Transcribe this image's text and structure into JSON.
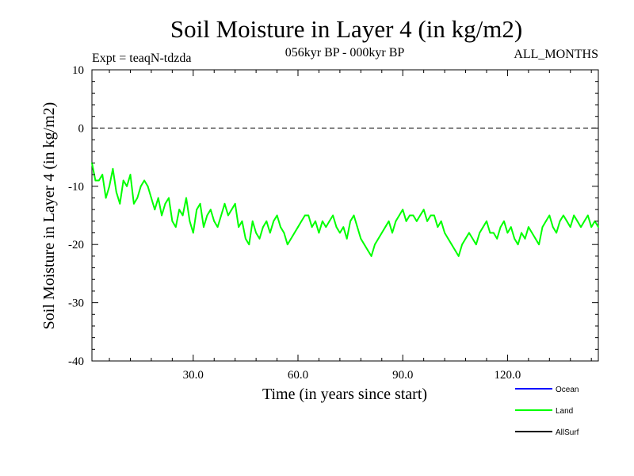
{
  "chart_data": {
    "type": "line",
    "title": "Soil Moisture in Layer 4 (in kg/m2)",
    "subtitle_left": "Expt = teaqN-tdzda",
    "subtitle_center": "056kyr BP - 000kyr BP",
    "subtitle_right": "ALL_MONTHS",
    "xlabel": "Time (in years since start)",
    "ylabel": "Soil Moisture in Layer 4 (in kg/m2)",
    "xlim": [
      1,
      146
    ],
    "ylim": [
      -40,
      10
    ],
    "x_ticks": [
      30,
      60,
      90,
      120
    ],
    "x_tick_labels": [
      "30.0",
      "60.0",
      "90.0",
      "120.0"
    ],
    "y_ticks": [
      10,
      0,
      -10,
      -20,
      -30,
      -40
    ],
    "y_tick_labels": [
      "10",
      "0",
      "-10",
      "-20",
      "-30",
      "-40"
    ],
    "reference_line": 0,
    "grid": false,
    "legend_position": "bottom-right",
    "series": [
      {
        "name": "Ocean",
        "color": "#0000ff",
        "values": []
      },
      {
        "name": "Land",
        "color": "#00ff00",
        "x_start": 1,
        "x_step": 1,
        "values": [
          -6,
          -9,
          -9,
          -8,
          -12,
          -10,
          -7,
          -11,
          -13,
          -9,
          -10,
          -8,
          -13,
          -12,
          -10,
          -9,
          -10,
          -12,
          -14,
          -12,
          -15,
          -13,
          -12,
          -16,
          -17,
          -14,
          -15,
          -12,
          -16,
          -18,
          -14,
          -13,
          -17,
          -15,
          -14,
          -16,
          -17,
          -15,
          -13,
          -15,
          -14,
          -13,
          -17,
          -16,
          -19,
          -20,
          -16,
          -18,
          -19,
          -17,
          -16,
          -18,
          -16,
          -15,
          -17,
          -18,
          -20,
          -19,
          -18,
          -17,
          -16,
          -15,
          -15,
          -17,
          -16,
          -18,
          -16,
          -17,
          -16,
          -15,
          -17,
          -18,
          -17,
          -19,
          -16,
          -15,
          -17,
          -19,
          -20,
          -21,
          -22,
          -20,
          -19,
          -18,
          -17,
          -16,
          -18,
          -16,
          -15,
          -14,
          -16,
          -15,
          -15,
          -16,
          -15,
          -14,
          -16,
          -15,
          -15,
          -17,
          -16,
          -18,
          -19,
          -20,
          -21,
          -22,
          -20,
          -19,
          -18,
          -19,
          -20,
          -18,
          -17,
          -16,
          -18,
          -18,
          -19,
          -17,
          -16,
          -18,
          -17,
          -19,
          -20,
          -18,
          -19,
          -17,
          -18,
          -19,
          -20,
          -17,
          -16,
          -15,
          -17,
          -18,
          -16,
          -15,
          -16,
          -17,
          -15,
          -16,
          -17,
          -16,
          -15,
          -17,
          -16,
          -17
        ]
      },
      {
        "name": "AllSurf",
        "color": "#000000",
        "values": []
      }
    ]
  }
}
